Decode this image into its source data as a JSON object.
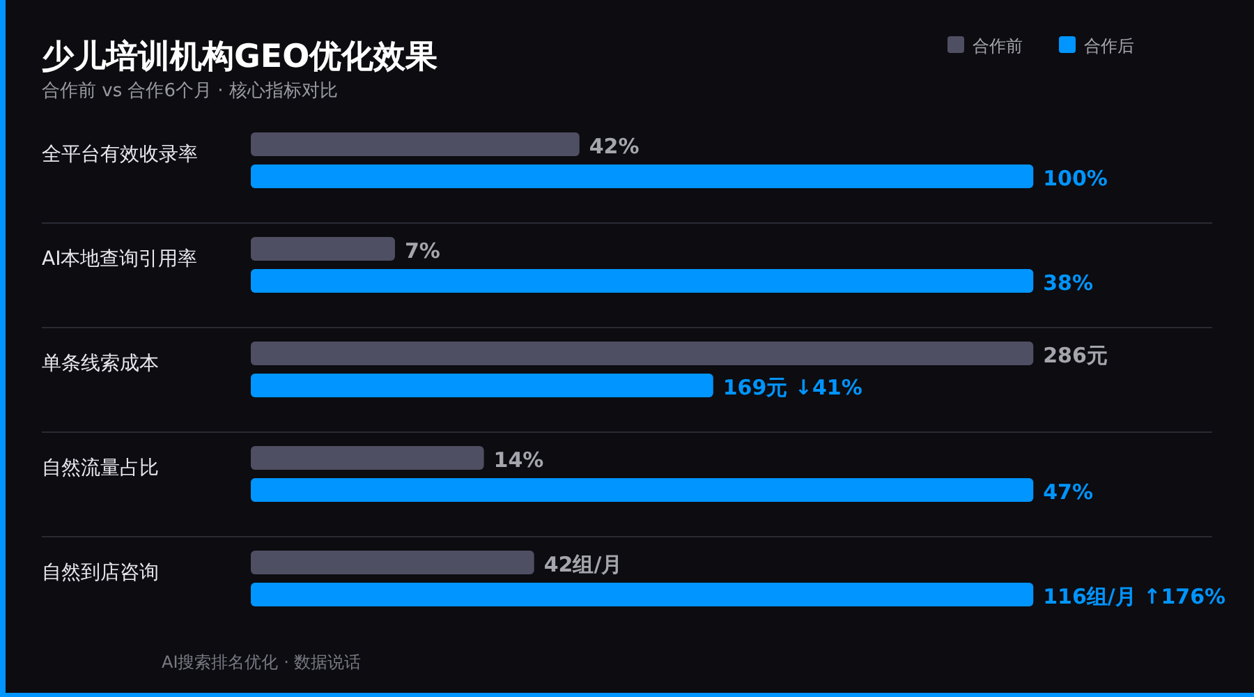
{
  "chart_data": [
    {
      "type": "bar",
      "orientation": "horizontal",
      "title": "少儿培训机构GEO优化效果",
      "subtitle": "合作前 vs 合作6个月 · 核心指标对比",
      "annotations": [
        "AI搜索排名优化 · 数据说话"
      ],
      "legend": "top right",
      "categories": [
        "全平台有效收录率"
      ],
      "series": [
        {
          "name": "合作前",
          "color": "#4f4f63",
          "values": [
            42
          ],
          "value_labels": [
            "42%"
          ]
        },
        {
          "name": "合作后",
          "color": "#0095ff",
          "values": [
            100
          ],
          "value_labels": [
            "100%"
          ]
        }
      ]
    },
    {
      "type": "bar",
      "orientation": "horizontal",
      "categories": [
        "AI本地查询引用率"
      ],
      "series": [
        {
          "color": "#4f4f63",
          "values": [
            7
          ],
          "value_labels": [
            "7%"
          ]
        },
        {
          "color": "#0095ff",
          "values": [
            38
          ],
          "value_labels": [
            "38%"
          ]
        }
      ]
    },
    {
      "type": "bar",
      "orientation": "horizontal",
      "categories": [
        "单条线索成本"
      ],
      "series": [
        {
          "color": "#4f4f63",
          "values": [
            286
          ],
          "value_labels": [
            "286元"
          ]
        },
        {
          "color": "#0095ff",
          "values": [
            169
          ],
          "value_labels": [
            "169元 ↓41%"
          ]
        }
      ]
    },
    {
      "type": "bar",
      "orientation": "horizontal",
      "categories": [
        "自然流量占比"
      ],
      "series": [
        {
          "color": "#4f4f63",
          "values": [
            14
          ],
          "value_labels": [
            "14%"
          ]
        },
        {
          "color": "#0095ff",
          "values": [
            47
          ],
          "value_labels": [
            "47%"
          ]
        }
      ]
    },
    {
      "type": "bar",
      "orientation": "horizontal",
      "categories": [
        "自然到店咨询"
      ],
      "series": [
        {
          "color": "#4f4f63",
          "values": [
            42
          ],
          "value_labels": [
            "42组/月"
          ]
        },
        {
          "color": "#0095ff",
          "values": [
            116
          ],
          "value_labels": [
            "116组/月 ↑176%"
          ]
        }
      ]
    }
  ]
}
